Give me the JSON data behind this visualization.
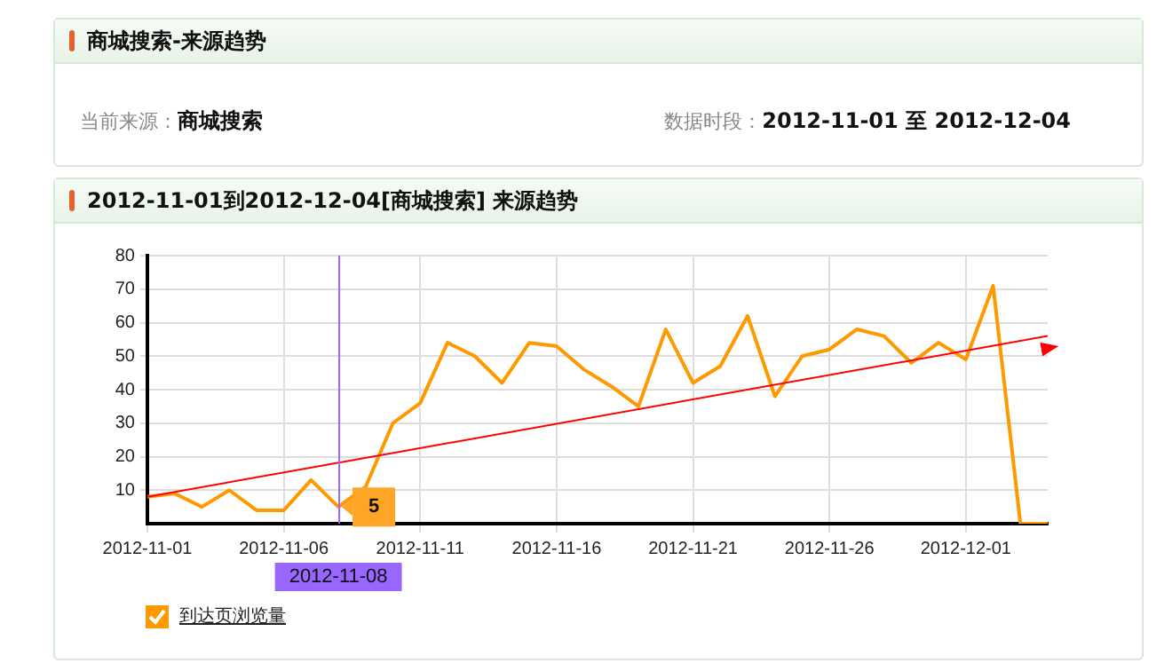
{
  "chart_data": {
    "type": "line",
    "title": "商城搜索-来源趋势",
    "subtitle": "2012-11-01到2012-12-04[商城搜索] 来源趋势",
    "annotations": [
      "当前来源：",
      "商城搜索",
      "数据时段：",
      "2012-11-01 至 2012-12-04",
      {
        "text": "5",
        "x": "2012-11-08",
        "y": 5
      }
    ],
    "x": [
      "2012-11-01",
      "2012-11-02",
      "2012-11-03",
      "2012-11-04",
      "2012-11-05",
      "2012-11-06",
      "2012-11-07",
      "2012-11-08",
      "2012-11-09",
      "2012-11-10",
      "2012-11-11",
      "2012-11-12",
      "2012-11-13",
      "2012-11-14",
      "2012-11-15",
      "2012-11-16",
      "2012-11-17",
      "2012-11-18",
      "2012-11-19",
      "2012-11-20",
      "2012-11-21",
      "2012-11-22",
      "2012-11-23",
      "2012-11-24",
      "2012-11-25",
      "2012-11-26",
      "2012-11-27",
      "2012-11-28",
      "2012-11-29",
      "2012-11-30",
      "2012-12-01",
      "2012-12-02",
      "2012-12-03",
      "2012-12-04"
    ],
    "series": [
      {
        "name": "到达页浏览量",
        "color": "#ff9900",
        "values": [
          8,
          9,
          5,
          10,
          4,
          4,
          13,
          5,
          11,
          30,
          36,
          54,
          50,
          42,
          54,
          53,
          46,
          41,
          35,
          58,
          42,
          47,
          62,
          38,
          50,
          52,
          58,
          56,
          48,
          54,
          49,
          71,
          0,
          0
        ]
      },
      {
        "type": "line",
        "color": "#ff0000",
        "x": [
          "2012-11-01",
          "2012-12-04"
        ],
        "values": [
          8,
          56
        ]
      }
    ],
    "xlim": [
      "2012-11-01",
      "2012-12-04"
    ],
    "xticks": [
      "2012-11-01",
      "2012-11-06",
      "2012-11-11",
      "2012-11-16",
      "2012-11-21",
      "2012-11-26",
      "2012-12-01"
    ],
    "ylim": [
      0,
      80
    ],
    "yticks": [
      10,
      20,
      30,
      40,
      50,
      60,
      70,
      80
    ],
    "ref_lines": [
      {
        "axis": "x",
        "value": "2012-11-08",
        "label": "2012-11-08",
        "color": "#9966ff"
      }
    ],
    "grid": true,
    "legend": "bottom left",
    "marker": "none",
    "line_style": "solid"
  }
}
